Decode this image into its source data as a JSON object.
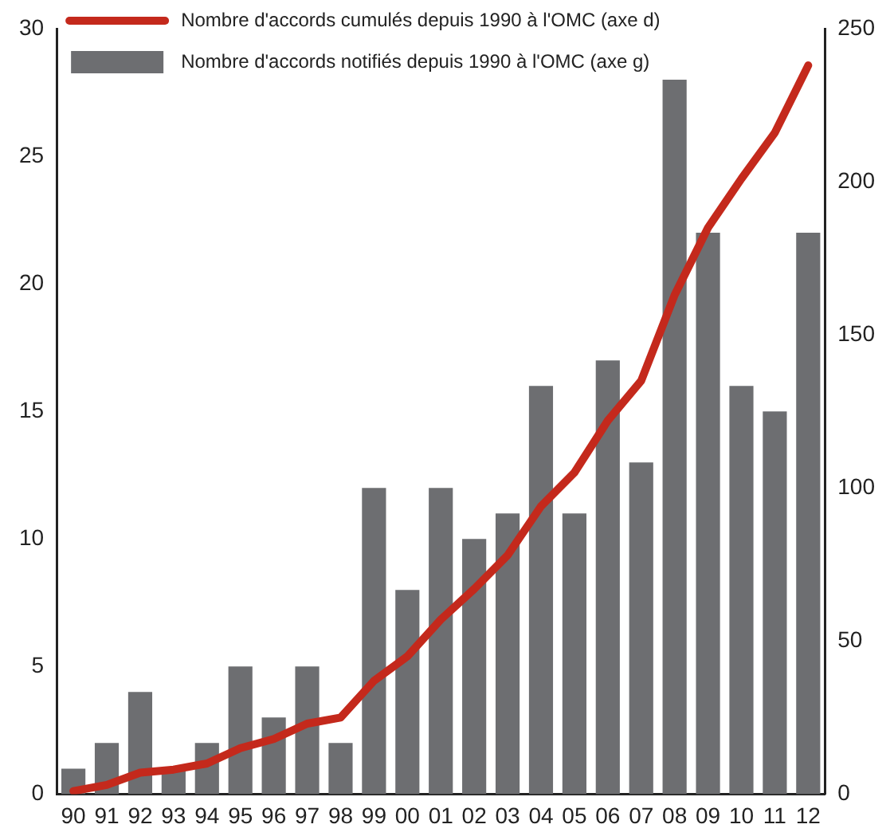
{
  "chart_data": {
    "type": "bar",
    "categories": [
      "90",
      "91",
      "92",
      "93",
      "94",
      "95",
      "96",
      "97",
      "98",
      "99",
      "00",
      "01",
      "02",
      "03",
      "04",
      "05",
      "06",
      "07",
      "08",
      "09",
      "10",
      "11",
      "12"
    ],
    "series": [
      {
        "name": "Nombre d'accords cumulés depuis 1990 à l'OMC (axe d)",
        "type": "line",
        "axis": "y2",
        "color": "#c4291c",
        "values": [
          1,
          3,
          7,
          8,
          10,
          15,
          18,
          23,
          25,
          37,
          45,
          57,
          67,
          78,
          94,
          105,
          122,
          135,
          163,
          185,
          201,
          216,
          238
        ]
      },
      {
        "name": "Nombre d'accords notifiés depuis 1990 à l'OMC (axe g)",
        "color": "#6d6e71",
        "values": [
          1,
          2,
          4,
          1,
          2,
          5,
          3,
          5,
          2,
          12,
          8,
          12,
          10,
          11,
          16,
          11,
          17,
          13,
          28,
          22,
          16,
          15,
          22
        ]
      }
    ],
    "ylim": [
      0,
      30
    ],
    "yticks": [
      0,
      5,
      10,
      15,
      20,
      25,
      30
    ],
    "y2lim": [
      0,
      250
    ],
    "y2ticks": [
      0,
      50,
      100,
      150,
      200,
      250
    ],
    "grid": false,
    "legend": "top left",
    "marker": "none",
    "line_style": "solid"
  }
}
